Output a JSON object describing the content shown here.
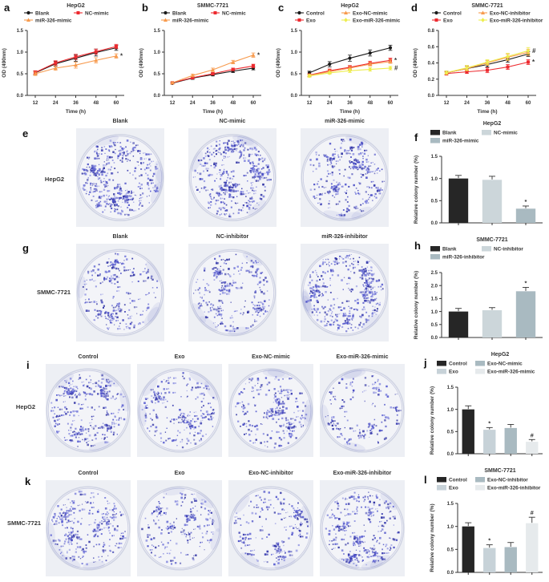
{
  "figure_title": "miR-326 exosome proliferation and colony formation figure",
  "chart_data": {
    "line_charts": [
      {
        "letter": "a",
        "type": "line",
        "title": "HepG2",
        "xlabel": "Time (h)",
        "ylabel": "OD (490nm)",
        "x": [
          12,
          24,
          36,
          48,
          60
        ],
        "ylim": [
          0,
          1.5
        ],
        "yticks": [
          0.0,
          0.5,
          1.0,
          1.5
        ],
        "legend_rows": [
          [
            0,
            1
          ],
          [
            2
          ]
        ],
        "series": [
          {
            "name": "Blank",
            "color": "#1a1a1a",
            "marker": "circle",
            "values": [
              0.52,
              0.73,
              0.86,
              0.99,
              1.1
            ],
            "err": [
              0.04,
              0.06,
              0.07,
              0.08,
              0.06
            ],
            "sig": ""
          },
          {
            "name": "NC-mimic",
            "color": "#ed2a2f",
            "marker": "square",
            "values": [
              0.53,
              0.75,
              0.89,
              1.01,
              1.13
            ],
            "err": [
              0.04,
              0.05,
              0.06,
              0.06,
              0.05
            ],
            "sig": ""
          },
          {
            "name": "miR-326-mimic",
            "color": "#f79a4d",
            "marker": "triangle",
            "values": [
              0.5,
              0.63,
              0.7,
              0.81,
              0.91
            ],
            "err": [
              0.04,
              0.05,
              0.07,
              0.06,
              0.05
            ],
            "sig": "*"
          }
        ]
      },
      {
        "letter": "b",
        "type": "line",
        "title": "SMMC-7721",
        "xlabel": "Time (h)",
        "ylabel": "OD (490nm)",
        "x": [
          12,
          24,
          36,
          48,
          60
        ],
        "ylim": [
          0,
          1.5
        ],
        "yticks": [
          0.0,
          0.5,
          1.0,
          1.5
        ],
        "legend_rows": [
          [
            0,
            1
          ],
          [
            2
          ]
        ],
        "series": [
          {
            "name": "Blank",
            "color": "#1a1a1a",
            "marker": "circle",
            "values": [
              0.28,
              0.4,
              0.48,
              0.56,
              0.63
            ],
            "err": [
              0.02,
              0.03,
              0.03,
              0.03,
              0.04
            ],
            "sig": ""
          },
          {
            "name": "NC-mimic",
            "color": "#ed2a2f",
            "marker": "square",
            "values": [
              0.29,
              0.41,
              0.5,
              0.6,
              0.68
            ],
            "err": [
              0.02,
              0.03,
              0.03,
              0.03,
              0.04
            ],
            "sig": ""
          },
          {
            "name": "miR-326-mimic",
            "color": "#f79a4d",
            "marker": "triangle",
            "values": [
              0.29,
              0.46,
              0.59,
              0.77,
              0.93
            ],
            "err": [
              0.02,
              0.03,
              0.04,
              0.04,
              0.05
            ],
            "sig": "*"
          }
        ]
      },
      {
        "letter": "c",
        "type": "line",
        "title": "HepG2",
        "xlabel": "Time (h)",
        "ylabel": "OD (490nm)",
        "x": [
          12,
          24,
          36,
          48,
          60
        ],
        "ylim": [
          0,
          1.5
        ],
        "yticks": [
          0.0,
          0.5,
          1.0,
          1.5
        ],
        "legend_rows": [
          [
            0,
            2
          ],
          [
            1,
            3
          ]
        ],
        "series": [
          {
            "name": "Control",
            "color": "#1a1a1a",
            "marker": "circle",
            "values": [
              0.52,
              0.72,
              0.86,
              0.98,
              1.1
            ],
            "err": [
              0.04,
              0.06,
              0.07,
              0.07,
              0.06
            ],
            "sig": ""
          },
          {
            "name": "Exo",
            "color": "#ed2a2f",
            "marker": "square",
            "values": [
              0.47,
              0.57,
              0.65,
              0.74,
              0.81
            ],
            "err": [
              0.03,
              0.04,
              0.04,
              0.05,
              0.05
            ],
            "sig": "*"
          },
          {
            "name": "Exo-NC-mimic",
            "color": "#f79a4d",
            "marker": "triangle",
            "values": [
              0.46,
              0.55,
              0.63,
              0.72,
              0.78
            ],
            "err": [
              0.03,
              0.04,
              0.04,
              0.04,
              0.04
            ],
            "sig": ""
          },
          {
            "name": "Exo-miR-326-mimic",
            "color": "#eded4f",
            "marker": "diamond",
            "values": [
              0.45,
              0.52,
              0.57,
              0.6,
              0.63
            ],
            "err": [
              0.03,
              0.03,
              0.04,
              0.04,
              0.04
            ],
            "sig": "#"
          }
        ]
      },
      {
        "letter": "d",
        "type": "line",
        "title": "SMMC-7721",
        "xlabel": "Time (h)",
        "ylabel": "OD (490nm)",
        "x": [
          12,
          24,
          36,
          48,
          60
        ],
        "ylim": [
          0,
          0.8
        ],
        "yticks": [
          0.0,
          0.2,
          0.4,
          0.6,
          0.8
        ],
        "legend_rows": [
          [
            0,
            2
          ],
          [
            1,
            3
          ]
        ],
        "series": [
          {
            "name": "Control",
            "color": "#1a1a1a",
            "marker": "circle",
            "values": [
              0.28,
              0.33,
              0.38,
              0.44,
              0.51
            ],
            "err": [
              0.02,
              0.03,
              0.03,
              0.03,
              0.03
            ],
            "sig": ""
          },
          {
            "name": "Exo",
            "color": "#ed2a2f",
            "marker": "square",
            "values": [
              0.27,
              0.29,
              0.31,
              0.35,
              0.41
            ],
            "err": [
              0.02,
              0.02,
              0.03,
              0.03,
              0.03
            ],
            "sig": "*"
          },
          {
            "name": "Exo-NC-inhibitor",
            "color": "#f79a4d",
            "marker": "triangle",
            "values": [
              0.28,
              0.33,
              0.4,
              0.47,
              0.53
            ],
            "err": [
              0.02,
              0.03,
              0.03,
              0.04,
              0.04
            ],
            "sig": ""
          },
          {
            "name": "Exo-miR-326-inhibitor",
            "color": "#eded4f",
            "marker": "diamond",
            "values": [
              0.28,
              0.34,
              0.41,
              0.48,
              0.55
            ],
            "err": [
              0.02,
              0.03,
              0.03,
              0.04,
              0.04
            ],
            "sig": "#"
          }
        ]
      }
    ],
    "bar_charts": [
      {
        "letter": "f",
        "type": "bar",
        "title": "HepG2",
        "ylabel": "Relative colony number (%)",
        "ylim": [
          0,
          1.5
        ],
        "yticks": [
          0.0,
          0.5,
          1.0,
          1.5
        ],
        "legend_rows": [
          [
            0,
            1
          ],
          [
            2
          ]
        ],
        "bars": [
          {
            "name": "Blank",
            "value": 1.0,
            "err": 0.07,
            "color": "#262626",
            "sig": ""
          },
          {
            "name": "NC-mimic",
            "value": 0.97,
            "err": 0.08,
            "color": "#ccd6da",
            "sig": ""
          },
          {
            "name": "miR-326-mimic",
            "value": 0.32,
            "err": 0.06,
            "color": "#a9bac1",
            "sig": "*"
          }
        ]
      },
      {
        "letter": "h",
        "type": "bar",
        "title": "SMMC-7721",
        "ylabel": "Relative colony number (%)",
        "ylim": [
          0,
          2.5
        ],
        "yticks": [
          0.0,
          0.5,
          1.0,
          1.5,
          2.0,
          2.5
        ],
        "legend_rows": [
          [
            0,
            1
          ],
          [
            2
          ]
        ],
        "bars": [
          {
            "name": "Blank",
            "value": 1.0,
            "err": 0.12,
            "color": "#262626",
            "sig": ""
          },
          {
            "name": "NC-inhibitor",
            "value": 1.05,
            "err": 0.1,
            "color": "#ccd6da",
            "sig": ""
          },
          {
            "name": "miR-326-inhibitor",
            "value": 1.78,
            "err": 0.15,
            "color": "#a9bac1",
            "sig": "*"
          }
        ]
      },
      {
        "letter": "j",
        "type": "bar",
        "title": "HepG2",
        "ylabel": "Relative colony number (%)",
        "ylim": [
          0,
          1.5
        ],
        "yticks": [
          0.0,
          0.5,
          1.0,
          1.5
        ],
        "legend_rows": [
          [
            0,
            2
          ],
          [
            1,
            3
          ]
        ],
        "bars": [
          {
            "name": "Control",
            "value": 1.0,
            "err": 0.08,
            "color": "#262626",
            "sig": ""
          },
          {
            "name": "Exo",
            "value": 0.54,
            "err": 0.05,
            "color": "#c7d2d8",
            "sig": "*"
          },
          {
            "name": "Exo-NC-mimic",
            "value": 0.58,
            "err": 0.08,
            "color": "#a9bac1",
            "sig": ""
          },
          {
            "name": "Exo-miR-326-mimic",
            "value": 0.27,
            "err": 0.05,
            "color": "#e6eaec",
            "sig": "#"
          }
        ]
      },
      {
        "letter": "l",
        "type": "bar",
        "title": "SMMC-7721",
        "ylabel": "Relative colony number (%)",
        "ylim": [
          0,
          1.5
        ],
        "yticks": [
          0.0,
          0.5,
          1.0,
          1.5
        ],
        "legend_rows": [
          [
            0,
            2
          ],
          [
            1,
            3
          ]
        ],
        "bars": [
          {
            "name": "Control",
            "value": 1.0,
            "err": 0.08,
            "color": "#262626",
            "sig": ""
          },
          {
            "name": "Exo",
            "value": 0.53,
            "err": 0.07,
            "color": "#c7d2d8",
            "sig": "*"
          },
          {
            "name": "Exo-NC-inhibitor",
            "value": 0.55,
            "err": 0.1,
            "color": "#a9bac1",
            "sig": ""
          },
          {
            "name": "Exo-miR-326-inhibitor",
            "value": 1.07,
            "err": 0.13,
            "color": "#e6eaec",
            "sig": "#"
          }
        ]
      }
    ]
  },
  "colony_rows": [
    {
      "letter": "e",
      "row_label": "HepG2",
      "dishes": [
        {
          "label": "Blank",
          "colonies": 420
        },
        {
          "label": "NC-mimic",
          "colonies": 420
        },
        {
          "label": "miR-326-mimic",
          "colonies": 290
        }
      ]
    },
    {
      "letter": "g",
      "row_label": "SMMC-7721",
      "dishes": [
        {
          "label": "Blank",
          "colonies": 240
        },
        {
          "label": "NC-inhibitor",
          "colonies": 260
        },
        {
          "label": "miR-326-inhibitor",
          "colonies": 400
        }
      ]
    },
    {
      "letter": "i",
      "row_label": "HepG2",
      "dishes": [
        {
          "label": "Control",
          "colonies": 310
        },
        {
          "label": "Exo",
          "colonies": 230
        },
        {
          "label": "Exo-NC-mimic",
          "colonies": 245
        },
        {
          "label": "Exo-miR-326-mimic",
          "colonies": 155
        }
      ]
    },
    {
      "letter": "k",
      "row_label": "SMMC-7721",
      "dishes": [
        {
          "label": "Control",
          "colonies": 290
        },
        {
          "label": "Exo",
          "colonies": 200
        },
        {
          "label": "Exo-NC-inhibitor",
          "colonies": 210
        },
        {
          "label": "Exo-miR-326-inhibitor",
          "colonies": 310
        }
      ]
    }
  ],
  "colors": {
    "series_black": "#1a1a1a",
    "series_red": "#ed2a2f",
    "series_orange": "#f79a4d",
    "series_yellow": "#eded4f",
    "bar_dark": "#262626",
    "bar_light": "#ccd6da",
    "bar_medium": "#a9bac1",
    "bar_pale": "#e6eaec",
    "colony_stain": "#4a4ec6"
  }
}
